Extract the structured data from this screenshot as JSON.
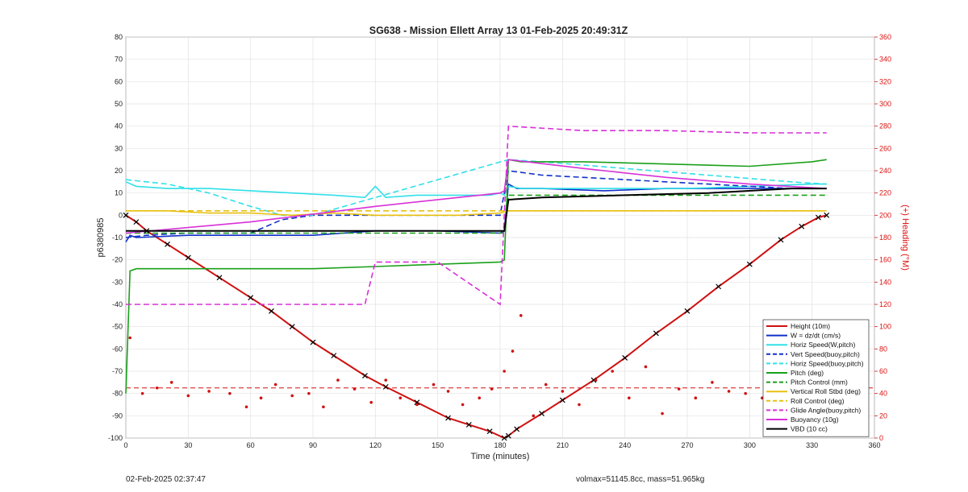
{
  "chart_data": {
    "type": "line",
    "title": "SG638 - Mission Ellett Array 13 01-Feb-2025 20:49:31Z",
    "xlabel": "Time (minutes)",
    "ylabel": "p6380985",
    "y2label": "(+) Heading (°M)",
    "xlim": [
      0,
      360
    ],
    "ylim": [
      -100,
      80
    ],
    "y2lim": [
      0,
      360
    ],
    "xticks": [
      "0",
      "30",
      "60",
      "90",
      "120",
      "150",
      "180",
      "210",
      "240",
      "270",
      "300",
      "330",
      "360"
    ],
    "yticks": [
      "80",
      "70",
      "60",
      "50",
      "40",
      "30",
      "20",
      "10",
      "0",
      "-10",
      "-20",
      "-30",
      "-40",
      "-50",
      "-60",
      "-70",
      "-80",
      "-90",
      "-100"
    ],
    "y2ticks": [
      "360",
      "340",
      "320",
      "300",
      "280",
      "260",
      "240",
      "220",
      "200",
      "180",
      "160",
      "140",
      "120",
      "100",
      "80",
      "60",
      "40",
      "20",
      "0"
    ],
    "grid": true,
    "legend_position": "bottom-right",
    "colors": {
      "height": "#d01010",
      "w": "#1030c8",
      "horiz": "#30e0e8",
      "pitch": "#1aa01a",
      "roll": "#e8c010",
      "glide": "#d830d8",
      "vbd": "#000000",
      "heading": "#d01010"
    },
    "series": [
      {
        "name": "Height (10m)",
        "style": "solid",
        "color": "#d01010",
        "x": [
          0,
          5,
          10,
          20,
          30,
          45,
          60,
          70,
          80,
          90,
          100,
          115,
          125,
          140,
          155,
          165,
          175,
          182,
          184,
          188,
          200,
          210,
          225,
          240,
          255,
          270,
          285,
          300,
          315,
          325,
          333,
          337
        ],
        "y": [
          0,
          -3,
          -7,
          -13,
          -19,
          -28,
          -37,
          -43,
          -50,
          -57,
          -63,
          -72,
          -77,
          -84,
          -91,
          -94,
          -97,
          -100,
          -99,
          -96,
          -89,
          -83,
          -74,
          -64,
          -53,
          -43,
          -32,
          -22,
          -11,
          -5,
          -1,
          0
        ]
      },
      {
        "name": "W = dz/dt (cm/s)",
        "style": "solid",
        "color": "#1030c8",
        "x": [
          0,
          2,
          5,
          30,
          60,
          90,
          120,
          150,
          180,
          182,
          184,
          188,
          200,
          230,
          260,
          300,
          330,
          337
        ],
        "y": [
          -12,
          -9,
          -10,
          -9,
          -9,
          -9,
          -7,
          -7,
          -8,
          -7,
          14,
          12,
          12,
          11,
          12,
          12,
          12,
          12
        ]
      },
      {
        "name": "Horiz Speed(W,pitch)",
        "style": "solid",
        "color": "#30e0e8",
        "x": [
          0,
          5,
          20,
          40,
          60,
          80,
          100,
          115,
          120,
          125,
          140,
          160,
          175,
          180,
          182,
          184,
          190,
          210,
          240,
          270,
          300,
          330,
          337
        ],
        "y": [
          15,
          13,
          12,
          12,
          11,
          10,
          9,
          8,
          13,
          8,
          9,
          9,
          9,
          10,
          9,
          13,
          12,
          12,
          12,
          12,
          13,
          14,
          14
        ]
      },
      {
        "name": "Vert Speed(buoy,pitch)",
        "style": "dashed",
        "color": "#1030c8",
        "x": [
          0,
          10,
          30,
          60,
          75,
          90,
          120,
          150,
          180,
          184,
          200,
          240,
          280,
          320,
          337
        ],
        "y": [
          -10,
          -9,
          -8,
          -8,
          -2,
          0,
          0,
          0,
          0,
          20,
          18,
          16,
          14,
          12,
          12
        ]
      },
      {
        "name": "Horiz Speed(buoy,pitch)",
        "style": "dashed",
        "color": "#30e0e8",
        "x": [
          0,
          20,
          40,
          60,
          75,
          90,
          184,
          200,
          240,
          280,
          320,
          337
        ],
        "y": [
          16,
          14,
          10,
          4,
          0,
          0,
          25,
          24,
          21,
          18,
          15,
          14
        ]
      },
      {
        "name": "Pitch (deg)",
        "style": "solid",
        "color": "#1aa01a",
        "x": [
          0,
          2,
          5,
          30,
          60,
          90,
          120,
          150,
          180,
          182,
          184,
          190,
          220,
          260,
          300,
          330,
          337
        ],
        "y": [
          -80,
          -25,
          -24,
          -24,
          -24,
          -24,
          -23,
          -22,
          -21,
          -20,
          25,
          24,
          24,
          23,
          22,
          24,
          25
        ]
      },
      {
        "name": "Pitch Control (mm)",
        "style": "dashed",
        "color": "#1aa01a",
        "x": [
          0,
          5,
          182,
          184,
          337
        ],
        "y": [
          -8,
          -8,
          -8,
          9,
          9
        ]
      },
      {
        "name": "Vertical Roll Stbd (deg)",
        "style": "solid",
        "color": "#e8c010",
        "x": [
          0,
          20,
          40,
          60,
          80,
          100,
          120,
          140,
          160,
          180,
          184,
          200,
          220,
          240,
          260,
          280,
          300,
          320,
          337
        ],
        "y": [
          2,
          2,
          1,
          1,
          0,
          1,
          0,
          0,
          0,
          1,
          2,
          2,
          2,
          2,
          2,
          2,
          2,
          2,
          2
        ]
      },
      {
        "name": "Roll Control (deg)",
        "style": "dashed",
        "color": "#e8c010",
        "x": [
          0,
          20,
          60,
          100,
          140,
          180,
          184,
          220,
          260,
          300,
          337
        ],
        "y": [
          2,
          2,
          2,
          2,
          2,
          2,
          2,
          2,
          2,
          2,
          2
        ]
      },
      {
        "name": "Glide Angle(buoy,pitch)",
        "style": "dashed",
        "color": "#d830d8",
        "x": [
          0,
          10,
          60,
          100,
          115,
          120,
          150,
          180,
          184,
          220,
          260,
          300,
          337
        ],
        "y": [
          -40,
          -40,
          -40,
          -40,
          -40,
          -21,
          -21,
          -40,
          40,
          38,
          38,
          37,
          37
        ]
      },
      {
        "name": "Buoyancy (10g)",
        "style": "solid",
        "color": "#d830d8",
        "x": [
          0,
          60,
          120,
          180,
          182,
          184,
          220,
          260,
          300,
          337
        ],
        "y": [
          -8,
          -3,
          4,
          10,
          11,
          25,
          21,
          17,
          14,
          12
        ]
      },
      {
        "name": "VBD (10 cc)",
        "style": "solid",
        "color": "#000000",
        "x": [
          0,
          2,
          182,
          184,
          200,
          240,
          280,
          320,
          337
        ],
        "y": [
          -7,
          -7,
          -7,
          7,
          8,
          9,
          10,
          12,
          12
        ]
      }
    ],
    "heading_series": {
      "axis": "right",
      "color": "#d01010",
      "x": [
        2,
        8,
        15,
        22,
        30,
        40,
        50,
        58,
        65,
        72,
        80,
        88,
        95,
        102,
        110,
        118,
        125,
        132,
        140,
        148,
        155,
        162,
        170,
        176,
        182,
        186,
        190,
        196,
        202,
        210,
        218,
        226,
        234,
        242,
        250,
        258,
        266,
        274,
        282,
        290,
        298,
        306,
        314,
        322,
        330
      ],
      "y": [
        90,
        40,
        45,
        50,
        38,
        42,
        40,
        28,
        36,
        48,
        38,
        40,
        28,
        52,
        44,
        32,
        52,
        36,
        30,
        48,
        42,
        30,
        36,
        44,
        60,
        78,
        110,
        20,
        48,
        42,
        30,
        52,
        60,
        36,
        64,
        22,
        44,
        36,
        50,
        42,
        40,
        36,
        44,
        38,
        50
      ]
    },
    "heading_reference": {
      "value": 45,
      "style": "dashed"
    }
  },
  "footer": {
    "left": "02-Feb-2025 02:37:47",
    "right": "volmax=51145.8cc, mass=51.965kg"
  }
}
